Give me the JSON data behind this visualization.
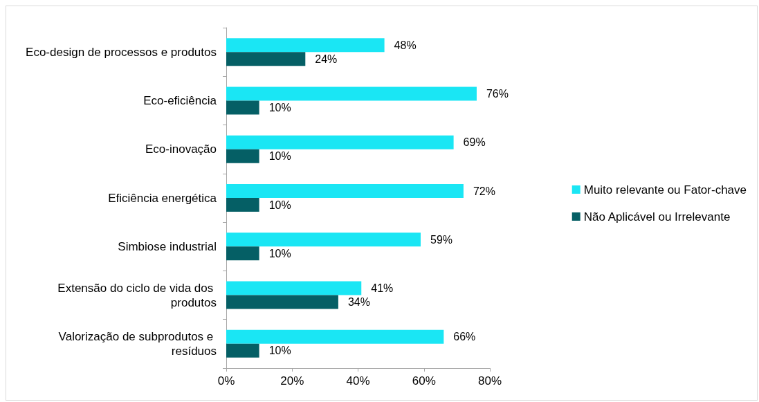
{
  "chart_data": {
    "type": "bar",
    "orientation": "horizontal",
    "categories": [
      "Eco-design de processos e produtos",
      "Eco-eficiência",
      "Eco-inovação",
      "Eficiência energética",
      "Simbiose industrial",
      "Extensão do ciclo de vida dos produtos",
      "Valorização de subprodutos e resíduos"
    ],
    "series": [
      {
        "name": "Muito relevante ou Fator-chave",
        "color": "#1ae6f4",
        "values": [
          48,
          76,
          69,
          72,
          59,
          41,
          66
        ],
        "value_labels": [
          "48%",
          "76%",
          "69%",
          "72%",
          "59%",
          "41%",
          "66%"
        ]
      },
      {
        "name": "Não Aplicável ou Irrelevante",
        "color": "#055f65",
        "values": [
          24,
          10,
          10,
          10,
          10,
          34,
          10
        ],
        "value_labels": [
          "24%",
          "10%",
          "10%",
          "10%",
          "10%",
          "34%",
          "10%"
        ]
      }
    ],
    "xlim": [
      0,
      80
    ],
    "xticks": [
      {
        "value": 0,
        "label": "0%"
      },
      {
        "value": 20,
        "label": "20%"
      },
      {
        "value": 40,
        "label": "40%"
      },
      {
        "value": 60,
        "label": "60%"
      },
      {
        "value": 80,
        "label": "80%"
      }
    ],
    "grid": false,
    "legend": "right"
  }
}
